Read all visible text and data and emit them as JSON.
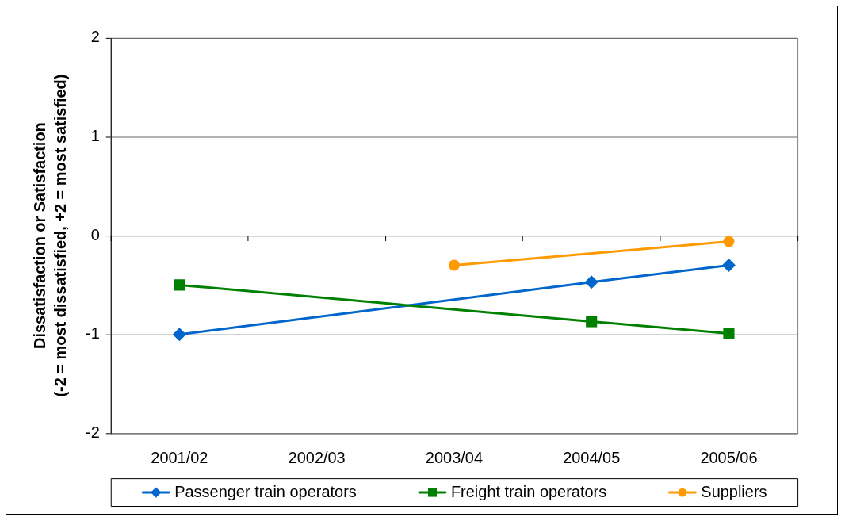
{
  "chart_data": {
    "type": "line",
    "ylabel": "Dissatisfaction or Satisfaction\n(-2 = most dissatisfied, +2 = most satisfied)",
    "categories": [
      "2001/02",
      "2002/03",
      "2003/04",
      "2004/05",
      "2005/06"
    ],
    "series": [
      {
        "name": "Passenger train operators",
        "color": "#0066cc",
        "marker": "diamond",
        "x": [
          "2001/02",
          "2004/05",
          "2005/06"
        ],
        "values": [
          -1.0,
          -0.47,
          -0.3
        ]
      },
      {
        "name": "Freight train operators",
        "color": "#008000",
        "marker": "square",
        "x": [
          "2001/02",
          "2004/05",
          "2005/06"
        ],
        "values": [
          -0.5,
          -0.87,
          -0.99
        ]
      },
      {
        "name": "Suppliers",
        "color": "#ff9900",
        "marker": "circle",
        "x": [
          "2003/04",
          "2005/06"
        ],
        "values": [
          -0.3,
          -0.06
        ]
      }
    ],
    "ylim": [
      -2,
      2
    ],
    "yticks": [
      -2,
      -1,
      0,
      1,
      2
    ],
    "grid": "y",
    "legend": "bottom",
    "line_style": "solid"
  }
}
